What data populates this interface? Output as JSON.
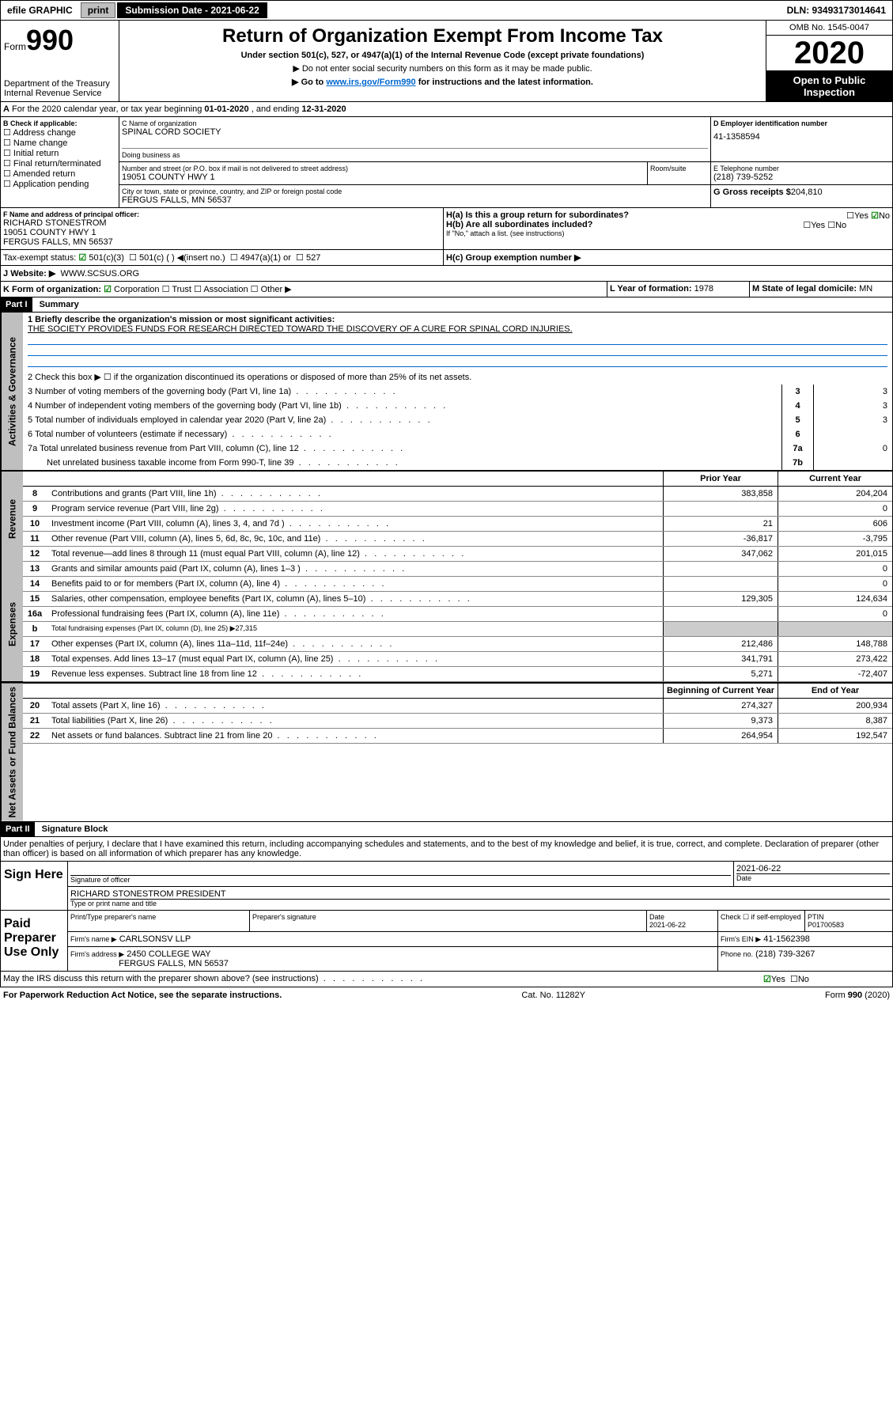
{
  "topbar": {
    "efile_label": "efile GRAPHIC",
    "print_btn": "print",
    "submission_label": "Submission Date - 2021-06-22",
    "dln": "DLN: 93493173014641"
  },
  "header": {
    "form_label": "Form",
    "form_num": "990",
    "dept": "Department of the Treasury\nInternal Revenue Service",
    "title": "Return of Organization Exempt From Income Tax",
    "subtitle": "Under section 501(c), 527, or 4947(a)(1) of the Internal Revenue Code (except private foundations)",
    "note1": "▶ Do not enter social security numbers on this form as it may be made public.",
    "note2_pre": "▶ Go to ",
    "note2_link": "www.irs.gov/Form990",
    "note2_post": " for instructions and the latest information.",
    "omb": "OMB No. 1545-0047",
    "tax_year": "2020",
    "open_public": "Open to Public Inspection"
  },
  "lineA": {
    "text_pre": "For the 2020 calendar year, or tax year beginning ",
    "begin": "01-01-2020",
    "mid": " , and ending ",
    "end": "12-31-2020"
  },
  "boxB": {
    "label": "B Check if applicable:",
    "addr": "Address change",
    "name": "Name change",
    "init": "Initial return",
    "final": "Final return/terminated",
    "amend": "Amended return",
    "app": "Application pending"
  },
  "boxC": {
    "label": "C Name of organization",
    "org": "SPINAL CORD SOCIETY",
    "dba_label": "Doing business as",
    "addr_label": "Number and street (or P.O. box if mail is not delivered to street address)",
    "room_label": "Room/suite",
    "addr": "19051 COUNTY HWY 1",
    "city_label": "City or town, state or province, country, and ZIP or foreign postal code",
    "city": "FERGUS FALLS, MN  56537"
  },
  "boxD": {
    "label": "D Employer identification number",
    "ein": "41-1358594"
  },
  "boxE": {
    "label": "E Telephone number",
    "phone": "(218) 739-5252"
  },
  "boxG": {
    "label": "G Gross receipts $",
    "amount": "204,810"
  },
  "boxF": {
    "label": "F  Name and address of principal officer:",
    "name": "RICHARD STONESTROM",
    "addr1": "19051 COUNTY HWY 1",
    "addr2": "FERGUS FALLS, MN  56537"
  },
  "boxH": {
    "ha": "H(a)  Is this a group return for subordinates?",
    "hb": "H(b)  Are all subordinates included?",
    "hbnote": "If \"No,\" attach a list. (see instructions)",
    "hc": "H(c)  Group exemption number ▶",
    "yes": "Yes",
    "no": "No"
  },
  "taxExempt": {
    "label": "Tax-exempt status:",
    "c3": "501(c)(3)",
    "other": "501(c) (  ) ◀(insert no.)",
    "a1": "4947(a)(1) or",
    "s527": "527"
  },
  "lineJ": {
    "label": "Website: ▶",
    "url": "WWW.SCSUS.ORG"
  },
  "lineK": {
    "label": "K Form of organization:",
    "corp": "Corporation",
    "trust": "Trust",
    "assoc": "Association",
    "other": "Other ▶"
  },
  "lineL": {
    "label": "L Year of formation:",
    "val": "1978"
  },
  "lineM": {
    "label": "M State of legal domicile:",
    "val": "MN"
  },
  "part1": {
    "tab": "Part I",
    "title": "Summary",
    "vtab_gov": "Activities & Governance",
    "vtab_rev": "Revenue",
    "vtab_exp": "Expenses",
    "vtab_net": "Net Assets or Fund Balances",
    "l1_label": "1  Briefly describe the organization's mission or most significant activities:",
    "l1_val": "THE SOCIETY PROVIDES FUNDS FOR RESEARCH DIRECTED TOWARD THE DISCOVERY OF A CURE FOR SPINAL CORD INJURIES.",
    "l2": "2   Check this box ▶ ☐ if the organization discontinued its operations or disposed of more than 25% of its net assets.",
    "l3": "3   Number of voting members of the governing body (Part VI, line 1a)",
    "l3v": "3",
    "l3val": "3",
    "l4": "4   Number of independent voting members of the governing body (Part VI, line 1b)",
    "l4v": "4",
    "l4val": "3",
    "l5": "5   Total number of individuals employed in calendar year 2020 (Part V, line 2a)",
    "l5v": "5",
    "l5val": "3",
    "l6": "6   Total number of volunteers (estimate if necessary)",
    "l6v": "6",
    "l6val": "",
    "l7a": "7a  Total unrelated business revenue from Part VIII, column (C), line 12",
    "l7av": "7a",
    "l7aval": "0",
    "l7b": "Net unrelated business taxable income from Form 990-T, line 39",
    "l7bv": "7b",
    "l7bval": "",
    "prior_hdr": "Prior Year",
    "curr_hdr": "Current Year",
    "rows": [
      {
        "n": "8",
        "d": "Contributions and grants (Part VIII, line 1h)",
        "p": "383,858",
        "c": "204,204"
      },
      {
        "n": "9",
        "d": "Program service revenue (Part VIII, line 2g)",
        "p": "",
        "c": "0"
      },
      {
        "n": "10",
        "d": "Investment income (Part VIII, column (A), lines 3, 4, and 7d )",
        "p": "21",
        "c": "606"
      },
      {
        "n": "11",
        "d": "Other revenue (Part VIII, column (A), lines 5, 6d, 8c, 9c, 10c, and 11e)",
        "p": "-36,817",
        "c": "-3,795"
      },
      {
        "n": "12",
        "d": "Total revenue—add lines 8 through 11 (must equal Part VIII, column (A), line 12)",
        "p": "347,062",
        "c": "201,015"
      },
      {
        "n": "13",
        "d": "Grants and similar amounts paid (Part IX, column (A), lines 1–3 )",
        "p": "",
        "c": "0"
      },
      {
        "n": "14",
        "d": "Benefits paid to or for members (Part IX, column (A), line 4)",
        "p": "",
        "c": "0"
      },
      {
        "n": "15",
        "d": "Salaries, other compensation, employee benefits (Part IX, column (A), lines 5–10)",
        "p": "129,305",
        "c": "124,634"
      },
      {
        "n": "16a",
        "d": "Professional fundraising fees (Part IX, column (A), line 11e)",
        "p": "",
        "c": "0"
      },
      {
        "n": "b",
        "d": "Total fundraising expenses (Part IX, column (D), line 25) ▶27,315",
        "p": "—",
        "c": "—"
      },
      {
        "n": "17",
        "d": "Other expenses (Part IX, column (A), lines 11a–11d, 11f–24e)",
        "p": "212,486",
        "c": "148,788"
      },
      {
        "n": "18",
        "d": "Total expenses. Add lines 13–17 (must equal Part IX, column (A), line 25)",
        "p": "341,791",
        "c": "273,422"
      },
      {
        "n": "19",
        "d": "Revenue less expenses. Subtract line 18 from line 12",
        "p": "5,271",
        "c": "-72,407"
      }
    ],
    "begin_hdr": "Beginning of Current Year",
    "end_hdr": "End of Year",
    "rows2": [
      {
        "n": "20",
        "d": "Total assets (Part X, line 16)",
        "p": "274,327",
        "c": "200,934"
      },
      {
        "n": "21",
        "d": "Total liabilities (Part X, line 26)",
        "p": "9,373",
        "c": "8,387"
      },
      {
        "n": "22",
        "d": "Net assets or fund balances. Subtract line 21 from line 20",
        "p": "264,954",
        "c": "192,547"
      }
    ]
  },
  "part2": {
    "tab": "Part II",
    "title": "Signature Block",
    "perjury": "Under penalties of perjury, I declare that I have examined this return, including accompanying schedules and statements, and to the best of my knowledge and belief, it is true, correct, and complete. Declaration of preparer (other than officer) is based on all information of which preparer has any knowledge.",
    "sign_here": "Sign Here",
    "sig_label": "Signature of officer",
    "sig_date": "2021-06-22",
    "date_label": "Date",
    "officer": "RICHARD STONESTROM  PRESIDENT",
    "officer_label": "Type or print name and title",
    "paid": "Paid Preparer Use Only",
    "prep_name_label": "Print/Type preparer's name",
    "prep_sig_label": "Preparer's signature",
    "prep_date_label": "Date",
    "prep_date": "2021-06-22",
    "check_label": "Check ☐ if self-employed",
    "ptin_label": "PTIN",
    "ptin": "P01700583",
    "firm_name_label": "Firm's name    ▶",
    "firm_name": "CARLSONSV LLP",
    "firm_ein_label": "Firm's EIN ▶",
    "firm_ein": "41-1562398",
    "firm_addr_label": "Firm's address ▶",
    "firm_addr1": "2450 COLLEGE WAY",
    "firm_addr2": "FERGUS FALLS, MN  56537",
    "phone_label": "Phone no.",
    "phone": "(218) 739-3267",
    "discuss": "May the IRS discuss this return with the preparer shown above? (see instructions)",
    "yes": "Yes",
    "no": "No"
  },
  "footer": {
    "pra": "For Paperwork Reduction Act Notice, see the separate instructions.",
    "cat": "Cat. No. 11282Y",
    "form": "Form 990 (2020)"
  }
}
